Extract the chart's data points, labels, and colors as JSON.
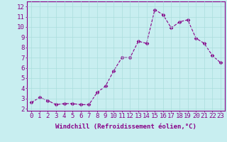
{
  "x": [
    0,
    1,
    2,
    3,
    4,
    5,
    6,
    7,
    8,
    9,
    10,
    11,
    12,
    13,
    14,
    15,
    16,
    17,
    18,
    19,
    20,
    21,
    22,
    23
  ],
  "y": [
    2.6,
    3.1,
    2.8,
    2.4,
    2.5,
    2.5,
    2.4,
    2.4,
    3.6,
    4.2,
    5.7,
    7.0,
    7.0,
    8.6,
    8.4,
    11.7,
    11.2,
    9.9,
    10.5,
    10.7,
    8.9,
    8.4,
    7.2,
    6.5
  ],
  "line_color": "#880088",
  "marker": "D",
  "marker_size": 2.5,
  "bg_color": "#c8eef0",
  "grid_color": "#aadddd",
  "xlabel": "Windchill (Refroidissement éolien,°C)",
  "ylabel_ticks": [
    2,
    3,
    4,
    5,
    6,
    7,
    8,
    9,
    10,
    11,
    12
  ],
  "xlim": [
    -0.5,
    23.5
  ],
  "ylim": [
    1.8,
    12.5
  ],
  "xticks": [
    0,
    1,
    2,
    3,
    4,
    5,
    6,
    7,
    8,
    9,
    10,
    11,
    12,
    13,
    14,
    15,
    16,
    17,
    18,
    19,
    20,
    21,
    22,
    23
  ],
  "xlabel_fontsize": 6.5,
  "tick_fontsize": 6.5,
  "tick_color": "#880088",
  "label_color": "#880088",
  "spine_color": "#880088"
}
